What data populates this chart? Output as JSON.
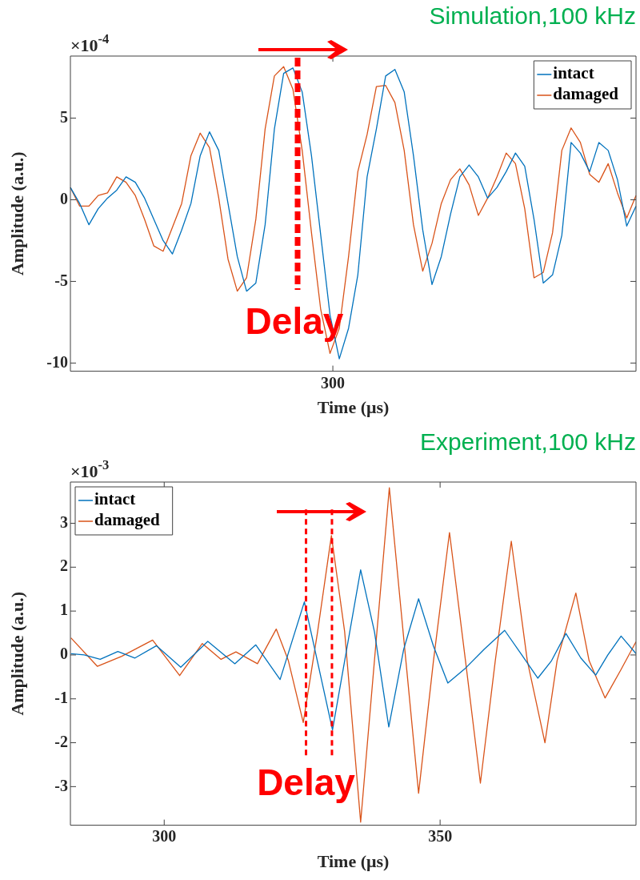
{
  "chart_data": [
    {
      "type": "line",
      "title": "Simulation,100 kHz",
      "xlabel": "Time (μs)",
      "ylabel": "Amplitude (a.u.)",
      "categories": [
        null,
        null,
        null,
        null,
        null,
        null,
        null,
        null,
        null,
        null,
        null,
        null,
        null,
        null,
        null,
        null,
        null,
        null,
        null,
        null,
        null,
        null,
        null,
        null,
        null,
        null,
        null,
        null,
        null,
        null,
        null,
        null,
        null,
        null,
        null,
        null,
        null,
        null,
        null,
        null,
        null,
        null,
        null,
        null,
        null,
        null,
        null,
        null,
        null,
        null,
        null,
        null,
        null,
        null,
        null,
        null,
        null,
        null,
        null,
        null,
        null,
        null
      ],
      "ylim": [
        -10.5,
        8.8
      ],
      "yticks": [
        -10,
        -5,
        0,
        5
      ],
      "legend": "top right",
      "annotations": [
        "×10$^{-4}$",
        "300",
        "Delay"
      ],
      "series": [
        {
          "name": "intact",
          "color": "#0072bd",
          "values": [
            0.75,
            -0.23,
            -1.53,
            -0.55,
            0.1,
            0.59,
            1.4,
            1.07,
            0.1,
            -1.2,
            -2.5,
            -3.32,
            -1.85,
            -0.23,
            2.7,
            4.16,
            3.02,
            -0.23,
            -3.48,
            -5.6,
            -5.1,
            -1.53,
            4.33,
            7.74,
            8.07,
            6.6,
            2.7,
            -2.18,
            -7.06,
            -9.74,
            -7.87,
            -4.6,
            1.4,
            4.33,
            7.58,
            7.98,
            6.6,
            2.7,
            -1.85,
            -5.19,
            -3.48,
            -0.88,
            1.4,
            2.13,
            1.4,
            0.1,
            0.75,
            1.72,
            2.86,
            2.05,
            -1.2,
            -5.1,
            -4.6,
            -2.18,
            3.51,
            2.86,
            1.72,
            3.51,
            3.02,
            1.23,
            -1.61,
            -0.39
          ]
        },
        {
          "name": "damaged",
          "color": "#d95319",
          "values": [
            0.75,
            -0.39,
            -0.39,
            0.26,
            0.42,
            1.4,
            1.07,
            0.26,
            -1.2,
            -2.83,
            -3.15,
            -1.69,
            -0.23,
            2.7,
            4.08,
            3.19,
            0.1,
            -3.64,
            -5.6,
            -4.78,
            -1.2,
            4.33,
            7.58,
            8.15,
            6.77,
            3.02,
            -2.02,
            -6.73,
            -9.41,
            -7.87,
            -3.48,
            1.72,
            4.0,
            6.93,
            7.0,
            5.95,
            3.02,
            -1.53,
            -4.37,
            -2.67,
            -0.23,
            1.23,
            1.89,
            0.91,
            -0.96,
            0.1,
            1.4,
            2.86,
            2.21,
            -0.55,
            -4.78,
            -4.45,
            -2.02,
            3.02,
            4.4,
            3.51,
            1.56,
            1.07,
            2.21,
            0.42,
            -1.12,
            0.26
          ]
        }
      ]
    },
    {
      "type": "line",
      "title": "Experiment,100 kHz",
      "xlabel": "Time (μs)",
      "ylabel": "Amplitude (a.u.)",
      "xlim": [
        283,
        385.5
      ],
      "xticks": [
        300,
        350
      ],
      "ylim": [
        -3.88,
        3.94
      ],
      "yticks": [
        -3,
        -2,
        -1,
        0,
        1,
        2,
        3
      ],
      "legend": "top left",
      "annotations": [
        "×10$^{-3}$"
      ],
      "ref_lines": [
        {
          "axis": "x",
          "value": 325.7,
          "label": "Delay",
          "color": "#ff0000",
          "line_style": "dashed"
        },
        {
          "axis": "x",
          "value": 330.4,
          "color": "#ff0000",
          "line_style": "dashed"
        }
      ],
      "series": [
        {
          "name": "intact",
          "color": "#0072bd",
          "x": [
            283.1,
            285.5,
            288.4,
            291.6,
            294.7,
            298.6,
            303.0,
            307.9,
            312.8,
            316.6,
            321.0,
            325.4,
            330.5,
            335.6,
            338.1,
            340.7,
            343.4,
            346.1,
            348.8,
            351.4,
            354.6,
            358.0,
            361.7,
            364.8,
            367.7,
            370.2,
            372.8,
            375.5,
            378.2,
            380.4,
            382.8,
            385.5
          ],
          "values": [
            0.03,
            0.0,
            -0.1,
            0.08,
            -0.07,
            0.21,
            -0.28,
            0.31,
            -0.2,
            0.23,
            -0.56,
            1.21,
            -1.71,
            1.94,
            0.53,
            -1.64,
            0.13,
            1.28,
            0.2,
            -0.64,
            -0.3,
            0.13,
            0.56,
            0.0,
            -0.53,
            -0.13,
            0.49,
            -0.07,
            -0.46,
            0.0,
            0.43,
            0.03
          ]
        },
        {
          "name": "damaged",
          "color": "#d95319",
          "x": [
            283.1,
            287.9,
            292.3,
            297.9,
            302.8,
            306.9,
            310.3,
            313.0,
            316.9,
            320.3,
            322.5,
            325.2,
            327.8,
            330.3,
            332.7,
            334.9,
            335.6,
            338.1,
            340.8,
            343.4,
            346.1,
            348.8,
            351.7,
            354.6,
            357.3,
            360.0,
            362.9,
            365.8,
            369.0,
            371.2,
            374.6,
            377.0,
            379.9,
            382.8,
            385.5
          ],
          "values": [
            0.39,
            -0.26,
            -0.03,
            0.34,
            -0.47,
            0.26,
            -0.1,
            0.07,
            -0.2,
            0.59,
            -0.13,
            -1.54,
            0.53,
            2.72,
            0.53,
            -2.76,
            -3.81,
            -0.13,
            3.81,
            0.39,
            -3.15,
            -0.13,
            2.79,
            -0.13,
            -2.92,
            -0.13,
            2.59,
            -0.13,
            -2.0,
            -0.13,
            1.41,
            -0.13,
            -0.98,
            -0.33,
            0.3
          ]
        }
      ]
    }
  ]
}
